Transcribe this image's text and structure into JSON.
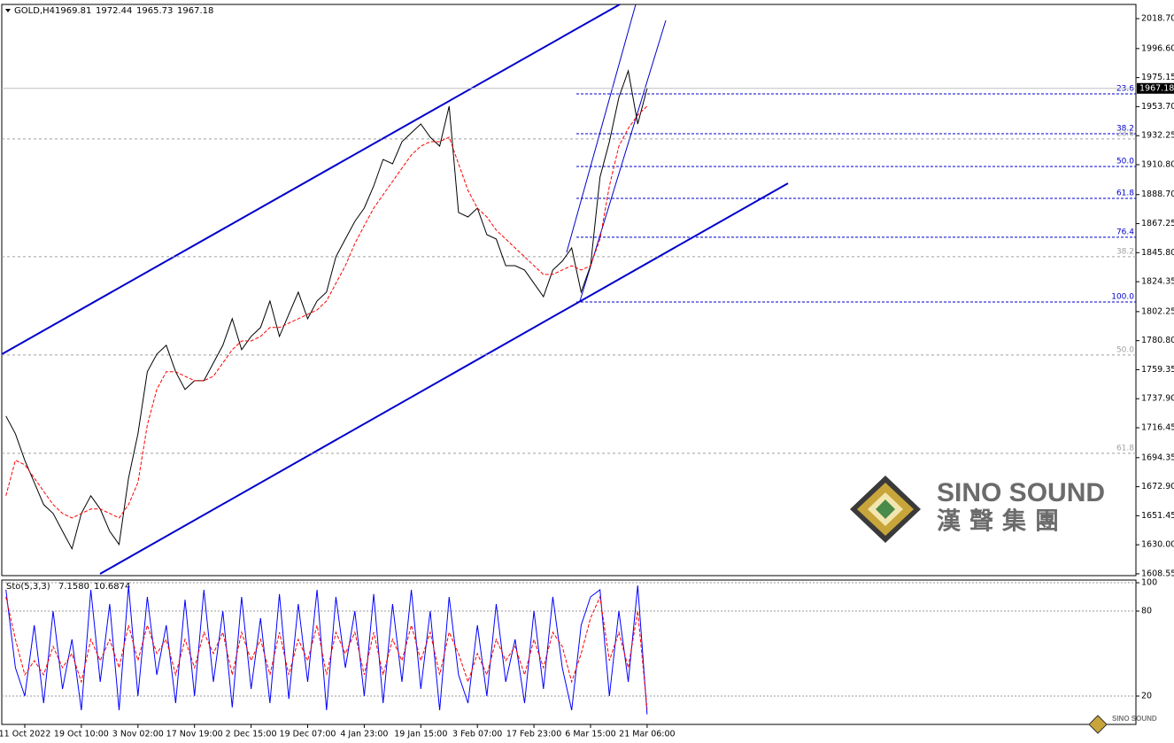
{
  "chart_data": [
    {
      "type": "line",
      "title": "GOLD,H4",
      "ohlc": [
        1969.81,
        1972.44,
        1965.73,
        1967.18
      ],
      "ylim": [
        1607.2,
        2029.2
      ],
      "yticks": [
        {
          "value": 2018.7,
          "label": "2018.70"
        },
        {
          "value": 1996.6,
          "label": "1996.60"
        },
        {
          "value": 1975.15,
          "label": "1975.15"
        },
        {
          "value": 1953.7,
          "label": "1953.70"
        },
        {
          "value": 1932.25,
          "label": "1932.25"
        },
        {
          "value": 1910.8,
          "label": "1910.80"
        },
        {
          "value": 1888.7,
          "label": "1888.70"
        },
        {
          "value": 1867.25,
          "label": "1867.25"
        },
        {
          "value": 1845.8,
          "label": "1845.80"
        },
        {
          "value": 1824.35,
          "label": "1824.35"
        },
        {
          "value": 1802.25,
          "label": "1802.25"
        },
        {
          "value": 1780.8,
          "label": "1780.80"
        },
        {
          "value": 1759.35,
          "label": "1759.35"
        },
        {
          "value": 1737.9,
          "label": "1737.90"
        },
        {
          "value": 1716.45,
          "label": "1716.45"
        },
        {
          "value": 1694.35,
          "label": "1694.35"
        },
        {
          "value": 1672.9,
          "label": "1672.90"
        },
        {
          "value": 1651.45,
          "label": "1651.45"
        },
        {
          "value": 1630,
          "label": "1630.00"
        },
        {
          "value": 1608.55,
          "label": "1608.55"
        }
      ],
      "series": [
        {
          "color": "#000000",
          "values": [
            1725.1,
            1712.0,
            1692.4,
            1676.0,
            1659.7,
            1653.1,
            1640.0,
            1627.0,
            1653.1,
            1666.2,
            1656.4,
            1640.0,
            1630.2,
            1679.3,
            1712.0,
            1757.8,
            1770.8,
            1777.4,
            1757.8,
            1744.7,
            1751.2,
            1751.2,
            1764.3,
            1777.4,
            1797.0,
            1774.1,
            1783.9,
            1790.5,
            1810.1,
            1783.9,
            1800.3,
            1816.6,
            1797.0,
            1810.1,
            1816.6,
            1842.8,
            1855.9,
            1868.9,
            1878.7,
            1895.1,
            1914.7,
            1911.4,
            1927.8,
            1934.3,
            1940.9,
            1931.1,
            1924.5,
            1954.0,
            1875.5,
            1872.2,
            1878.7,
            1859.1,
            1855.9,
            1836.2,
            1836.2,
            1833.0,
            1823.2,
            1813.3,
            1833.0,
            1839.5,
            1849.3,
            1816.6,
            1836.2,
            1901.6,
            1927.8,
            1960.5,
            1980.1,
            1940.9,
            1967.18
          ]
        },
        {
          "color": "#ff0000",
          "dashed": true,
          "values": [
            1666.2,
            1692.4,
            1689.1,
            1679.3,
            1669.5,
            1659.7,
            1653.1,
            1649.8,
            1653.1,
            1656.4,
            1656.4,
            1653.1,
            1649.8,
            1659.7,
            1676.0,
            1718.5,
            1744.7,
            1757.8,
            1757.8,
            1754.5,
            1751.2,
            1751.2,
            1754.5,
            1764.3,
            1774.1,
            1780.6,
            1780.6,
            1783.9,
            1790.5,
            1790.5,
            1793.7,
            1797.0,
            1800.3,
            1803.5,
            1810.1,
            1823.2,
            1836.2,
            1852.6,
            1865.7,
            1878.7,
            1888.6,
            1898.4,
            1908.2,
            1918.0,
            1924.5,
            1927.8,
            1927.8,
            1931.1,
            1911.4,
            1891.8,
            1878.7,
            1872.2,
            1862.4,
            1855.9,
            1849.3,
            1842.8,
            1836.2,
            1829.7,
            1829.7,
            1833.0,
            1836.2,
            1833.0,
            1836.2,
            1855.9,
            1895.1,
            1924.5,
            1937.6,
            1947.4,
            1954.0
          ]
        }
      ],
      "fibonacci": [
        {
          "color": "#0000cd",
          "levels": [
            "23.6",
            "38.2",
            "50.0",
            "61.8",
            "76.4",
            "100.0"
          ],
          "prices": [
            1963.1,
            1933.7,
            1909.5,
            1885.9,
            1857.2,
            1809.4
          ]
        },
        {
          "color": "#a0a0a0",
          "levels": [
            "23.6",
            "38.2",
            "50.0",
            "61.8"
          ],
          "prices": [
            1929.8,
            1842.8,
            1770.2,
            1697.6
          ]
        }
      ],
      "logo": {
        "name": "SINO SOUND",
        "subtitle": "漢聲集團"
      }
    },
    {
      "type": "line",
      "title": "Sto(5,3,3)",
      "readout": [
        "7.1580",
        "10.6874"
      ],
      "ylim": [
        0,
        101.9
      ],
      "yticks": [
        100,
        80,
        20
      ],
      "categories": [
        null,
        null,
        "11 Oct 2022",
        null,
        null,
        null,
        null,
        null,
        "19 Oct 10:00",
        null,
        null,
        null,
        null,
        null,
        "3 Nov 02:00",
        null,
        null,
        null,
        null,
        null,
        "17 Nov 19:00",
        null,
        null,
        null,
        null,
        null,
        "2 Dec 15:00",
        null,
        null,
        null,
        null,
        null,
        "19 Dec 07:00",
        null,
        null,
        null,
        null,
        null,
        "4 Jan 23:00",
        null,
        null,
        null,
        null,
        null,
        "19 Jan 15:00",
        null,
        null,
        null,
        null,
        null,
        "3 Feb 07:00",
        null,
        null,
        null,
        null,
        null,
        "17 Feb 23:00",
        null,
        null,
        null,
        null,
        null,
        "6 Mar 15:00",
        null,
        null,
        null,
        null,
        null,
        "21 Mar 06:00"
      ],
      "series": [
        {
          "color": "#0000ff",
          "values": [
            95,
            40,
            20,
            70,
            15,
            80,
            25,
            60,
            10,
            95,
            30,
            85,
            10,
            98,
            20,
            90,
            35,
            70,
            15,
            88,
            20,
            95,
            30,
            80,
            12,
            90,
            25,
            75,
            15,
            92,
            18,
            85,
            30,
            95,
            10,
            90,
            40,
            80,
            20,
            92,
            15,
            85,
            30,
            95,
            25,
            80,
            10,
            90,
            35,
            15,
            70,
            20,
            85,
            30,
            60,
            15,
            80,
            25,
            90,
            40,
            10,
            70,
            90,
            95,
            20,
            80,
            30,
            98,
            7.158
          ]
        },
        {
          "color": "#ff0000",
          "dashed": true,
          "values": [
            90,
            60,
            35,
            45,
            35,
            55,
            40,
            50,
            30,
            60,
            45,
            60,
            40,
            70,
            45,
            70,
            50,
            60,
            35,
            60,
            40,
            65,
            50,
            65,
            35,
            65,
            45,
            60,
            35,
            65,
            35,
            60,
            45,
            70,
            35,
            65,
            50,
            65,
            35,
            65,
            35,
            60,
            45,
            70,
            45,
            65,
            35,
            65,
            50,
            30,
            50,
            35,
            60,
            45,
            55,
            35,
            60,
            40,
            65,
            55,
            30,
            50,
            75,
            90,
            45,
            65,
            40,
            80,
            10.6874
          ]
        }
      ]
    }
  ]
}
